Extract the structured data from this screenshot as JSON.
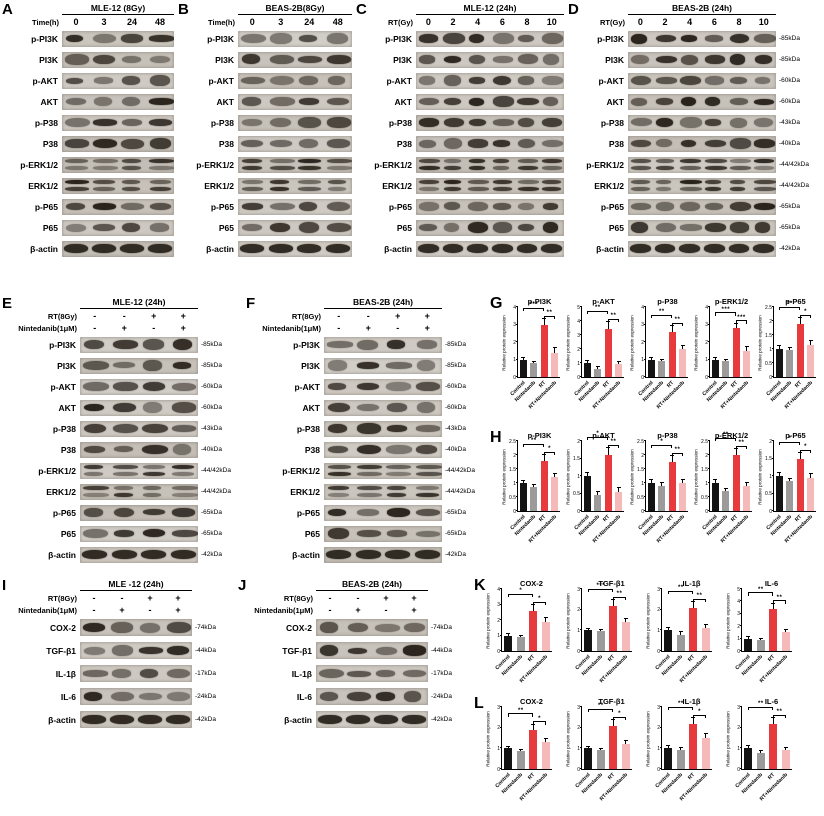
{
  "figure": {
    "description": "Western blot and densitometry figure",
    "accent_colors": {
      "control": "#141414",
      "nintedanib": "#9b9b9b",
      "rt": "#e63a3c",
      "rt_nintedanib": "#f5b9ba"
    }
  },
  "protein_sets": {
    "signaling": [
      "p-PI3K",
      "PI3K",
      "p-AKT",
      "AKT",
      "p-P38",
      "P38",
      "p-ERK1/2",
      "ERK1/2",
      "p-P65",
      "P65",
      "β-actin"
    ],
    "signaling_kda": [
      "-85kDa",
      "-85kDa",
      "-60kDa",
      "-60kDa",
      "-43kDa",
      "-40kDa",
      "-44/42kDa",
      "-44/42kDa",
      "-65kDa",
      "-65kDa",
      "-42kDa"
    ],
    "inflammatory": [
      "COX-2",
      "TGF-β1",
      "IL-1β",
      "IL-6",
      "β-actin"
    ],
    "inflammatory_kda": [
      "-74kDa",
      "-44kDa",
      "-17kDa",
      "-24kDa",
      "-42kDa"
    ]
  },
  "blot_panels": [
    {
      "id": "A",
      "letter": "A",
      "title": "MLE-12 (8Gy)",
      "lanes": 4,
      "proteins": "signaling",
      "kda": null,
      "header_rows": [
        {
          "label": "Time(h)",
          "values": [
            "0",
            "3",
            "24",
            "48"
          ]
        }
      ]
    },
    {
      "id": "B",
      "letter": "B",
      "title": "BEAS-2B(8Gy)",
      "lanes": 4,
      "proteins": "signaling",
      "kda": null,
      "header_rows": [
        {
          "label": "Time(h)",
          "values": [
            "0",
            "3",
            "24",
            "48"
          ]
        }
      ]
    },
    {
      "id": "C",
      "letter": "C",
      "title": "MLE-12 (24h)",
      "lanes": 6,
      "proteins": "signaling",
      "kda": null,
      "header_rows": [
        {
          "label": "RT(Gy)",
          "values": [
            "0",
            "2",
            "4",
            "6",
            "8",
            "10"
          ]
        }
      ]
    },
    {
      "id": "D",
      "letter": "D",
      "title": "BEAS-2B (24h)",
      "lanes": 6,
      "proteins": "signaling",
      "kda": "signaling_kda",
      "header_rows": [
        {
          "label": "RT(Gy)",
          "values": [
            "0",
            "2",
            "4",
            "6",
            "8",
            "10"
          ]
        }
      ]
    },
    {
      "id": "E",
      "letter": "E",
      "title": "MLE-12 (24h)",
      "lanes": 4,
      "proteins": "signaling",
      "kda": "signaling_kda",
      "header_rows": [
        {
          "label": "RT(8Gy)",
          "values": [
            "-",
            "-",
            "+",
            "+"
          ]
        },
        {
          "label": "Nintedanib(1μM)",
          "values": [
            "-",
            "+",
            "-",
            "+"
          ]
        }
      ]
    },
    {
      "id": "F",
      "letter": "F",
      "title": "BEAS-2B (24h)",
      "lanes": 4,
      "proteins": "signaling",
      "kda": "signaling_kda",
      "header_rows": [
        {
          "label": "RT(8Gy)",
          "values": [
            "-",
            "-",
            "+",
            "+"
          ]
        },
        {
          "label": "Nintedanib(1μM)",
          "values": [
            "-",
            "+",
            "-",
            "+"
          ]
        }
      ]
    },
    {
      "id": "I",
      "letter": "I",
      "title": "MLE -12 (24h)",
      "lanes": 4,
      "proteins": "inflammatory",
      "kda": "inflammatory_kda",
      "header_rows": [
        {
          "label": "RT(8Gy)",
          "values": [
            "-",
            "-",
            "+",
            "+"
          ]
        },
        {
          "label": "Nintedanib(1μM)",
          "values": [
            "-",
            "+",
            "-",
            "+"
          ]
        }
      ]
    },
    {
      "id": "J",
      "letter": "J",
      "title": "BEAS-2B (24h)",
      "lanes": 4,
      "proteins": "inflammatory",
      "kda": "inflammatory_kda",
      "header_rows": [
        {
          "label": "RT(8Gy)",
          "values": [
            "-",
            "-",
            "+",
            "+"
          ]
        },
        {
          "label": "Nintedanib(1μM)",
          "values": [
            "-",
            "+",
            "-",
            "+"
          ]
        }
      ]
    }
  ],
  "chart_data": {
    "type": "bar",
    "categories": [
      "Control",
      "Nintedanib",
      "RT",
      "RT+Nintedanib"
    ],
    "ylabel": "Relative protein expression",
    "bar_colors": [
      "#141414",
      "#9b9b9b",
      "#e63a3c",
      "#f5b9ba"
    ],
    "legend": "none",
    "groups": [
      {
        "id": "G",
        "charts": [
          {
            "title": "p-PI3K",
            "values": [
              1.0,
              0.8,
              3.0,
              1.4
            ],
            "errors": [
              0.1,
              0.08,
              0.3,
              0.25
            ],
            "ylim": [
              0,
              4
            ],
            "yticks": [
              0,
              1,
              2,
              3,
              4
            ],
            "significance": [
              {
                "from": "Control",
                "to": "RT",
                "label": "***"
              },
              {
                "from": "RT",
                "to": "RT+Nintedanib",
                "label": "**"
              }
            ]
          },
          {
            "title": "p-AKT",
            "values": [
              1.0,
              0.6,
              3.4,
              0.9
            ],
            "errors": [
              0.12,
              0.1,
              0.5,
              0.15
            ],
            "ylim": [
              0,
              5
            ],
            "yticks": [
              0,
              1,
              2,
              3,
              4,
              5
            ],
            "significance": [
              {
                "from": "Control",
                "to": "RT",
                "label": "**"
              },
              {
                "from": "RT",
                "to": "RT+Nintedanib",
                "label": "**"
              }
            ]
          },
          {
            "title": "p-P38",
            "values": [
              1.0,
              0.9,
              2.6,
              1.6
            ],
            "errors": [
              0.1,
              0.1,
              0.3,
              0.2
            ],
            "ylim": [
              0,
              4
            ],
            "yticks": [
              0,
              1,
              2,
              3,
              4
            ],
            "significance": [
              {
                "from": "Control",
                "to": "RT",
                "label": "**"
              },
              {
                "from": "RT",
                "to": "RT+Nintedanib",
                "label": "**"
              }
            ]
          },
          {
            "title": "p-ERK1/2",
            "values": [
              1.0,
              0.9,
              2.8,
              1.5
            ],
            "errors": [
              0.1,
              0.1,
              0.25,
              0.2
            ],
            "ylim": [
              0,
              4
            ],
            "yticks": [
              0,
              1,
              2,
              3,
              4
            ],
            "significance": [
              {
                "from": "Control",
                "to": "RT",
                "label": "***"
              },
              {
                "from": "RT",
                "to": "RT+Nintedanib",
                "label": "***"
              }
            ]
          },
          {
            "title": "p-P65",
            "values": [
              1.0,
              0.95,
              1.9,
              1.15
            ],
            "errors": [
              0.1,
              0.1,
              0.2,
              0.15
            ],
            "ylim": [
              0,
              2.5
            ],
            "yticks": [
              0,
              0.5,
              1,
              1.5,
              2,
              2.5
            ],
            "significance": [
              {
                "from": "Control",
                "to": "RT",
                "label": "**"
              },
              {
                "from": "RT",
                "to": "RT+Nintedanib",
                "label": "*"
              }
            ]
          }
        ]
      },
      {
        "id": "H",
        "charts": [
          {
            "title": "p-PI3K",
            "values": [
              1.0,
              0.85,
              1.8,
              1.2
            ],
            "errors": [
              0.08,
              0.08,
              0.2,
              0.12
            ],
            "ylim": [
              0,
              2.5
            ],
            "yticks": [
              0,
              0.5,
              1,
              1.5,
              2,
              2.5
            ],
            "significance": [
              {
                "from": "Control",
                "to": "RT",
                "label": "**"
              },
              {
                "from": "RT",
                "to": "RT+Nintedanib",
                "label": "*"
              }
            ]
          },
          {
            "title": "p-AKT",
            "values": [
              1.0,
              0.45,
              1.6,
              0.55
            ],
            "errors": [
              0.1,
              0.08,
              0.2,
              0.1
            ],
            "ylim": [
              0,
              2
            ],
            "yticks": [
              0,
              0.5,
              1,
              1.5,
              2
            ],
            "significance": [
              {
                "from": "Control",
                "to": "RT",
                "label": "*"
              },
              {
                "from": "RT",
                "to": "RT+Nintedanib",
                "label": "**"
              }
            ]
          },
          {
            "title": "p-P38",
            "values": [
              1.0,
              0.9,
              1.75,
              1.0
            ],
            "errors": [
              0.1,
              0.1,
              0.2,
              0.1
            ],
            "ylim": [
              0,
              2.5
            ],
            "yticks": [
              0,
              0.5,
              1,
              1.5,
              2,
              2.5
            ],
            "significance": [
              {
                "from": "Control",
                "to": "RT",
                "label": "*"
              },
              {
                "from": "RT",
                "to": "RT+Nintedanib",
                "label": "**"
              }
            ]
          },
          {
            "title": "p-ERK1/2",
            "values": [
              1.0,
              0.7,
              2.0,
              0.9
            ],
            "errors": [
              0.1,
              0.08,
              0.2,
              0.1
            ],
            "ylim": [
              0,
              2.5
            ],
            "yticks": [
              0,
              0.5,
              1,
              1.5,
              2,
              2.5
            ],
            "significance": [
              {
                "from": "Control",
                "to": "RT",
                "label": "**"
              },
              {
                "from": "RT",
                "to": "RT+Nintedanib",
                "label": "**"
              }
            ]
          },
          {
            "title": "p-P65",
            "values": [
              1.0,
              0.85,
              1.5,
              0.95
            ],
            "errors": [
              0.08,
              0.08,
              0.15,
              0.1
            ],
            "ylim": [
              0,
              2
            ],
            "yticks": [
              0,
              0.5,
              1,
              1.5,
              2
            ],
            "significance": [
              {
                "from": "Control",
                "to": "RT",
                "label": "*"
              },
              {
                "from": "RT",
                "to": "RT+Nintedanib",
                "label": "*"
              }
            ]
          }
        ]
      },
      {
        "id": "K",
        "charts": [
          {
            "title": "COX-2",
            "values": [
              1.0,
              0.9,
              2.6,
              1.9
            ],
            "errors": [
              0.1,
              0.1,
              0.35,
              0.25
            ],
            "ylim": [
              0,
              4
            ],
            "yticks": [
              0,
              1,
              2,
              3,
              4
            ],
            "significance": [
              {
                "from": "Control",
                "to": "RT",
                "label": "*"
              },
              {
                "from": "RT",
                "to": "RT+Nintedanib",
                "label": "*"
              }
            ]
          },
          {
            "title": "TGF-β1",
            "values": [
              1.0,
              0.95,
              2.2,
              1.4
            ],
            "errors": [
              0.08,
              0.08,
              0.25,
              0.15
            ],
            "ylim": [
              0,
              3
            ],
            "yticks": [
              0,
              1,
              2,
              3
            ],
            "significance": [
              {
                "from": "Control",
                "to": "RT",
                "label": "***"
              },
              {
                "from": "RT",
                "to": "RT+Nintedanib",
                "label": "**"
              }
            ]
          },
          {
            "title": "IL-1β",
            "values": [
              1.0,
              0.8,
              2.1,
              1.1
            ],
            "errors": [
              0.1,
              0.1,
              0.25,
              0.15
            ],
            "ylim": [
              0,
              3
            ],
            "yticks": [
              0,
              1,
              2,
              3
            ],
            "significance": [
              {
                "from": "Control",
                "to": "RT",
                "label": "**"
              },
              {
                "from": "RT",
                "to": "RT+Nintedanib",
                "label": "**"
              }
            ]
          },
          {
            "title": "IL-6",
            "values": [
              1.0,
              0.9,
              3.4,
              1.5
            ],
            "errors": [
              0.1,
              0.1,
              0.4,
              0.2
            ],
            "ylim": [
              0,
              5
            ],
            "yticks": [
              0,
              1,
              2,
              3,
              4,
              5
            ],
            "significance": [
              {
                "from": "Control",
                "to": "RT",
                "label": "**"
              },
              {
                "from": "RT",
                "to": "RT+Nintedanib",
                "label": "**"
              }
            ]
          }
        ]
      },
      {
        "id": "L",
        "charts": [
          {
            "title": "COX-2",
            "values": [
              1.0,
              0.85,
              1.9,
              1.3
            ],
            "errors": [
              0.08,
              0.08,
              0.25,
              0.15
            ],
            "ylim": [
              0,
              3
            ],
            "yticks": [
              0,
              1,
              2,
              3
            ],
            "significance": [
              {
                "from": "Control",
                "to": "RT",
                "label": "**"
              },
              {
                "from": "RT",
                "to": "RT+Nintedanib",
                "label": "*"
              }
            ]
          },
          {
            "title": "TGF-β1",
            "values": [
              1.0,
              0.9,
              2.1,
              1.2
            ],
            "errors": [
              0.08,
              0.08,
              0.25,
              0.15
            ],
            "ylim": [
              0,
              3
            ],
            "yticks": [
              0,
              1,
              2,
              3
            ],
            "significance": [
              {
                "from": "Control",
                "to": "RT",
                "label": "**"
              },
              {
                "from": "RT",
                "to": "RT+Nintedanib",
                "label": "*"
              }
            ]
          },
          {
            "title": "IL-1β",
            "values": [
              1.0,
              0.9,
              2.2,
              1.5
            ],
            "errors": [
              0.1,
              0.1,
              0.25,
              0.2
            ],
            "ylim": [
              0,
              3
            ],
            "yticks": [
              0,
              1,
              2,
              3
            ],
            "significance": [
              {
                "from": "Control",
                "to": "RT",
                "label": "**"
              },
              {
                "from": "RT",
                "to": "RT+Nintedanib",
                "label": "*"
              }
            ]
          },
          {
            "title": "IL-6",
            "values": [
              1.0,
              0.8,
              2.2,
              0.9
            ],
            "errors": [
              0.1,
              0.08,
              0.25,
              0.12
            ],
            "ylim": [
              0,
              3
            ],
            "yticks": [
              0,
              1,
              2,
              3
            ],
            "significance": [
              {
                "from": "Control",
                "to": "RT",
                "label": "**"
              },
              {
                "from": "RT",
                "to": "RT+Nintedanib",
                "label": "**"
              }
            ]
          }
        ]
      }
    ]
  }
}
